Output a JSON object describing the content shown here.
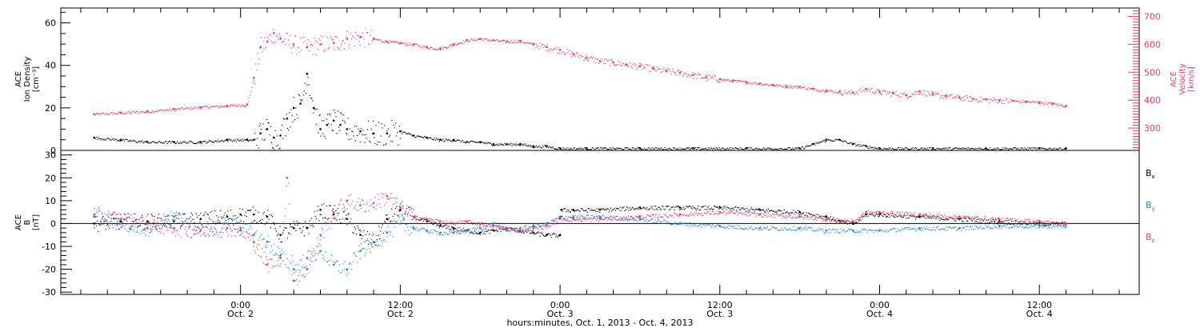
{
  "chart_data": [
    {
      "type": "scatter",
      "panel": "top",
      "ylabel_lines": [
        "ACE",
        "Ion Density",
        "[cm⁻³]"
      ],
      "y2label_lines": [
        "ACE",
        "Velocity",
        "[km/s]"
      ],
      "ylim": [
        0,
        67
      ],
      "yticks": [
        0,
        20,
        40,
        60
      ],
      "y2lim": [
        220,
        730
      ],
      "y2ticks": [
        300,
        400,
        500,
        600,
        700
      ],
      "grid": false,
      "series": [
        {
          "axis": "left",
          "color": "#000000",
          "points": [
            [
              -11,
              6
            ],
            [
              -9,
              5
            ],
            [
              -7,
              4
            ],
            [
              -5,
              4
            ],
            [
              -3,
              4
            ],
            [
              -1,
              5
            ],
            [
              0.5,
              5
            ],
            [
              1,
              5
            ],
            [
              1.5,
              8
            ],
            [
              2,
              10
            ],
            [
              2.5,
              6
            ],
            [
              3,
              7
            ],
            [
              3.5,
              15
            ],
            [
              4,
              20
            ],
            [
              4.5,
              22
            ],
            [
              5,
              36
            ],
            [
              5.5,
              20
            ],
            [
              6,
              10
            ],
            [
              6.5,
              12
            ],
            [
              7,
              14
            ],
            [
              7.5,
              12
            ],
            [
              8,
              10
            ],
            [
              9,
              9
            ],
            [
              10,
              8
            ],
            [
              11,
              8
            ],
            [
              12,
              9
            ],
            [
              13,
              7
            ],
            [
              14,
              6
            ],
            [
              15,
              5
            ],
            [
              16,
              5
            ],
            [
              17,
              4
            ],
            [
              18,
              4
            ],
            [
              19,
              3
            ],
            [
              20,
              3
            ],
            [
              21,
              3
            ],
            [
              22,
              2
            ],
            [
              23,
              2
            ],
            [
              24,
              1
            ],
            [
              26,
              1
            ],
            [
              30,
              1
            ],
            [
              34,
              1
            ],
            [
              38,
              1
            ],
            [
              42,
              1
            ],
            [
              43,
              3
            ],
            [
              44,
              5
            ],
            [
              45,
              5
            ],
            [
              46,
              3
            ],
            [
              47,
              2
            ],
            [
              48,
              1
            ],
            [
              52,
              1
            ],
            [
              56,
              1
            ],
            [
              60,
              1
            ],
            [
              62,
              1
            ]
          ]
        },
        {
          "axis": "right",
          "color": "#e8395f",
          "points": [
            [
              -11,
              350
            ],
            [
              -9,
              355
            ],
            [
              -7,
              360
            ],
            [
              -5,
              368
            ],
            [
              -3,
              375
            ],
            [
              -1,
              380
            ],
            [
              0.5,
              385
            ],
            [
              1,
              480
            ],
            [
              1.5,
              590
            ],
            [
              2,
              610
            ],
            [
              2.5,
              640
            ],
            [
              3,
              620
            ],
            [
              4,
              600
            ],
            [
              5,
              590
            ],
            [
              6,
              600
            ],
            [
              7,
              605
            ],
            [
              8,
              620
            ],
            [
              9,
              625
            ],
            [
              10,
              620
            ],
            [
              11,
              610
            ],
            [
              12,
              605
            ],
            [
              13,
              600
            ],
            [
              14,
              590
            ],
            [
              15,
              585
            ],
            [
              16,
              600
            ],
            [
              17,
              615
            ],
            [
              18,
              620
            ],
            [
              19,
              615
            ],
            [
              20,
              610
            ],
            [
              21,
              612
            ],
            [
              22,
              600
            ],
            [
              23,
              590
            ],
            [
              24,
              580
            ],
            [
              25,
              565
            ],
            [
              26,
              552
            ],
            [
              27,
              540
            ],
            [
              28,
              535
            ],
            [
              29,
              528
            ],
            [
              30,
              522
            ],
            [
              31,
              512
            ],
            [
              32,
              505
            ],
            [
              33,
              498
            ],
            [
              34,
              490
            ],
            [
              35,
              482
            ],
            [
              36,
              475
            ],
            [
              37,
              470
            ],
            [
              38,
              465
            ],
            [
              39,
              460
            ],
            [
              40,
              455
            ],
            [
              41,
              450
            ],
            [
              42,
              448
            ],
            [
              43,
              440
            ],
            [
              44,
              435
            ],
            [
              45,
              430
            ],
            [
              46,
              428
            ],
            [
              47,
              440
            ],
            [
              48,
              430
            ],
            [
              49,
              425
            ],
            [
              50,
              418
            ],
            [
              51,
              432
            ],
            [
              52,
              420
            ],
            [
              53,
              415
            ],
            [
              54,
              410
            ],
            [
              55,
              405
            ],
            [
              56,
              402
            ],
            [
              57,
              400
            ],
            [
              58,
              398
            ],
            [
              59,
              395
            ],
            [
              60,
              393
            ],
            [
              61,
              388
            ],
            [
              62,
              380
            ]
          ]
        }
      ]
    },
    {
      "type": "scatter",
      "panel": "bottom",
      "ylabel_lines": [
        "ACE",
        "B",
        "[nT]"
      ],
      "ylim": [
        -31,
        32
      ],
      "yticks": [
        -30,
        -20,
        -10,
        0,
        10,
        20,
        30
      ],
      "zero_line": true,
      "legend": "right",
      "series": [
        {
          "name": "Bx",
          "color": "#000000",
          "points": [
            [
              -11,
              0
            ],
            [
              -9,
              1
            ],
            [
              -7,
              1
            ],
            [
              -5,
              1
            ],
            [
              -3,
              2
            ],
            [
              -1,
              3
            ],
            [
              0,
              4
            ],
            [
              1,
              4
            ],
            [
              2,
              3
            ],
            [
              3,
              -5
            ],
            [
              4,
              -2
            ],
            [
              5,
              -2
            ],
            [
              6,
              6
            ],
            [
              7,
              4
            ],
            [
              8,
              2
            ],
            [
              9,
              -5
            ],
            [
              10,
              -8
            ],
            [
              11,
              2
            ],
            [
              12,
              6
            ],
            [
              13,
              3
            ],
            [
              14,
              1
            ],
            [
              15,
              -1
            ],
            [
              16,
              -2
            ],
            [
              17,
              -3
            ],
            [
              18,
              -4
            ],
            [
              19,
              -3
            ],
            [
              20,
              -2
            ],
            [
              21,
              -3
            ],
            [
              22,
              -4
            ],
            [
              23,
              -5
            ],
            [
              24,
              -5
            ],
            [
              24.1,
              6
            ],
            [
              25,
              6
            ],
            [
              27,
              6
            ],
            [
              30,
              7
            ],
            [
              33,
              7
            ],
            [
              36,
              7
            ],
            [
              39,
              6
            ],
            [
              42,
              5
            ],
            [
              44,
              3
            ],
            [
              45,
              1
            ],
            [
              46,
              0
            ],
            [
              47,
              4
            ],
            [
              48,
              4
            ],
            [
              51,
              3
            ],
            [
              54,
              2
            ],
            [
              57,
              1
            ],
            [
              60,
              0
            ],
            [
              62,
              0
            ]
          ]
        },
        {
          "name": "By",
          "color": "#1e82d9",
          "points": [
            [
              -11,
              3
            ],
            [
              -9,
              0
            ],
            [
              -7,
              -2
            ],
            [
              -5,
              3
            ],
            [
              -3,
              -3
            ],
            [
              -1,
              0
            ],
            [
              0,
              -2
            ],
            [
              1,
              -5
            ],
            [
              2,
              -8
            ],
            [
              3,
              -14
            ],
            [
              4,
              -20
            ],
            [
              5,
              -15
            ],
            [
              6,
              -12
            ],
            [
              7,
              -18
            ],
            [
              8,
              -20
            ],
            [
              9,
              -12
            ],
            [
              10,
              -8
            ],
            [
              11,
              -4
            ],
            [
              12,
              0
            ],
            [
              13,
              -2
            ],
            [
              14,
              -3
            ],
            [
              15,
              -4
            ],
            [
              16,
              -4
            ],
            [
              17,
              -3
            ],
            [
              18,
              -2
            ],
            [
              19,
              0
            ],
            [
              20,
              -3
            ],
            [
              21,
              -2
            ],
            [
              22,
              -1
            ],
            [
              23,
              0
            ],
            [
              24,
              3
            ],
            [
              25,
              3
            ],
            [
              27,
              3
            ],
            [
              30,
              2
            ],
            [
              33,
              0
            ],
            [
              36,
              -1
            ],
            [
              39,
              -2
            ],
            [
              42,
              -2
            ],
            [
              44,
              -3
            ],
            [
              46,
              -3
            ],
            [
              48,
              -3
            ],
            [
              51,
              -2
            ],
            [
              54,
              -2
            ],
            [
              57,
              -1
            ],
            [
              60,
              -1
            ],
            [
              62,
              -1
            ]
          ]
        },
        {
          "name": "Bz",
          "color": "#e8395f",
          "points": [
            [
              -11,
              4
            ],
            [
              -9,
              2
            ],
            [
              -7,
              0
            ],
            [
              -5,
              -2
            ],
            [
              -3,
              -3
            ],
            [
              -1,
              -2
            ],
            [
              0,
              -3
            ],
            [
              1,
              -8
            ],
            [
              2,
              -18
            ],
            [
              3,
              -15
            ],
            [
              3.5,
              20
            ],
            [
              4,
              -25
            ],
            [
              5,
              -20
            ],
            [
              6,
              -5
            ],
            [
              7,
              5
            ],
            [
              8,
              10
            ],
            [
              9,
              8
            ],
            [
              10,
              9
            ],
            [
              11,
              12
            ],
            [
              12,
              7
            ],
            [
              13,
              3
            ],
            [
              14,
              2
            ],
            [
              15,
              1
            ],
            [
              16,
              0
            ],
            [
              17,
              1
            ],
            [
              18,
              0
            ],
            [
              19,
              -1
            ],
            [
              20,
              -2
            ],
            [
              21,
              -3
            ],
            [
              22,
              -2
            ],
            [
              23,
              -1
            ],
            [
              24,
              2
            ],
            [
              25,
              2
            ],
            [
              27,
              2
            ],
            [
              30,
              3
            ],
            [
              33,
              4
            ],
            [
              36,
              5
            ],
            [
              39,
              4
            ],
            [
              42,
              3
            ],
            [
              44,
              2
            ],
            [
              46,
              1
            ],
            [
              47,
              5
            ],
            [
              48,
              5
            ],
            [
              51,
              4
            ],
            [
              54,
              3
            ],
            [
              57,
              2
            ],
            [
              60,
              1
            ],
            [
              62,
              0
            ]
          ]
        }
      ],
      "legend_labels": [
        {
          "base": "B",
          "sub": "x",
          "color": "#000000"
        },
        {
          "base": "B",
          "sub": "y",
          "color": "#1e82d9"
        },
        {
          "base": "B",
          "sub": "z",
          "color": "#e8395f"
        }
      ]
    }
  ],
  "x_axis": {
    "unit": "hours",
    "lim": [
      -13.5,
      67.5
    ],
    "ticks": [
      {
        "value": 0,
        "time": "0:00",
        "date": "Oct. 2"
      },
      {
        "value": 12,
        "time": "12:00",
        "date": "Oct. 2"
      },
      {
        "value": 24,
        "time": "0:00",
        "date": "Oct. 3"
      },
      {
        "value": 36,
        "time": "12:00",
        "date": "Oct. 3"
      },
      {
        "value": 48,
        "time": "0:00",
        "date": "Oct. 4"
      },
      {
        "value": 60,
        "time": "12:00",
        "date": "Oct. 4"
      }
    ],
    "minor_step": 2,
    "title": "hours:minutes, Oct.  1, 2013 - Oct.  4, 2013"
  }
}
